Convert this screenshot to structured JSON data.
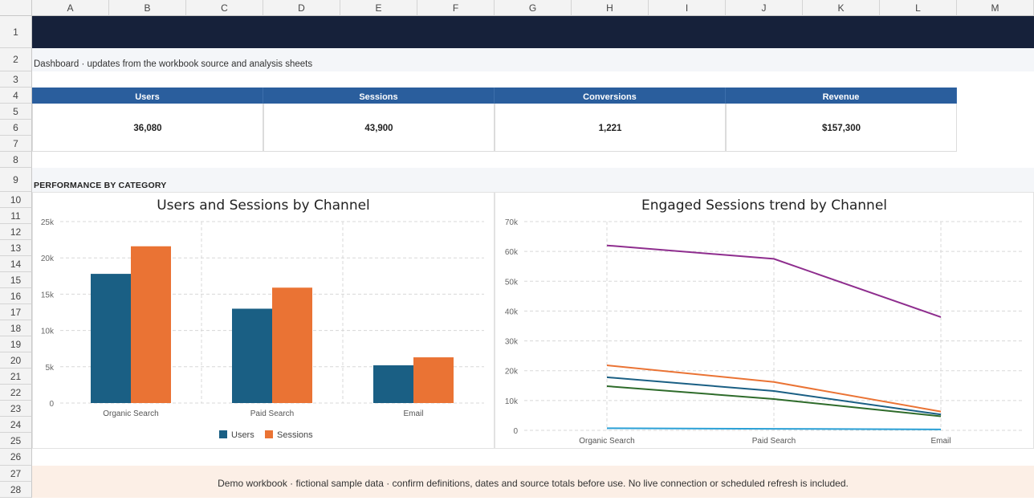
{
  "sheet": {
    "columns": [
      "A",
      "B",
      "C",
      "D",
      "E",
      "F",
      "G",
      "H",
      "I",
      "J",
      "K",
      "L",
      "M"
    ],
    "rows": [
      "1",
      "2",
      "3",
      "4",
      "5",
      "6",
      "7",
      "8",
      "9",
      "10",
      "11",
      "12",
      "13",
      "14",
      "15",
      "16",
      "17",
      "18",
      "19",
      "20",
      "21",
      "22",
      "23",
      "24",
      "25",
      "26",
      "27",
      "28"
    ]
  },
  "dashboard": {
    "subtitle": "Dashboard · updates from the workbook source and analysis sheets",
    "section_label": "PERFORMANCE BY CATEGORY",
    "footer": "Demo workbook · fictional sample data · confirm definitions, dates and source totals before use. No live connection or scheduled refresh is included."
  },
  "kpis": [
    {
      "label": "Users",
      "value": "36,080"
    },
    {
      "label": "Sessions",
      "value": "43,900"
    },
    {
      "label": "Conversions",
      "value": "1,221"
    },
    {
      "label": "Revenue",
      "value": "$157,300"
    }
  ],
  "colors": {
    "title_bar": "#16213a",
    "kpi_header": "#2a5e9d",
    "users": "#1a5f84",
    "sessions": "#ea7334"
  },
  "chart_data": [
    {
      "type": "bar",
      "title": "Users and Sessions by Channel",
      "categories": [
        "Organic Search",
        "Paid Search",
        "Email"
      ],
      "series": [
        {
          "name": "Users",
          "color": "#1a5f84",
          "values": [
            17800,
            13000,
            5200
          ]
        },
        {
          "name": "Sessions",
          "color": "#ea7334",
          "values": [
            21600,
            15900,
            6300
          ]
        }
      ],
      "ylim": [
        0,
        25000
      ],
      "yticks": [
        0,
        5000,
        10000,
        15000,
        20000,
        25000
      ],
      "ytick_labels": [
        "0",
        "5k",
        "10k",
        "15k",
        "20k",
        "25k"
      ],
      "grid": true,
      "legend": "bottom"
    },
    {
      "type": "line",
      "title": "Engaged Sessions trend by Channel",
      "categories": [
        "Organic Search",
        "Paid Search",
        "Email"
      ],
      "series": [
        {
          "color": "#8e2d8e",
          "values": [
            62000,
            57500,
            38000
          ]
        },
        {
          "color": "#ea7334",
          "values": [
            21800,
            16200,
            6300
          ]
        },
        {
          "color": "#1a5f84",
          "values": [
            17800,
            13200,
            5300
          ]
        },
        {
          "color": "#2e6b2a",
          "values": [
            14800,
            10500,
            4700
          ]
        },
        {
          "color": "#2aa0d6",
          "values": [
            700,
            500,
            300
          ]
        }
      ],
      "ylim": [
        0,
        70000
      ],
      "yticks": [
        0,
        10000,
        20000,
        30000,
        40000,
        50000,
        60000,
        70000
      ],
      "ytick_labels": [
        "0",
        "10k",
        "20k",
        "30k",
        "40k",
        "50k",
        "60k",
        "70k"
      ],
      "grid": true,
      "legend": "none"
    }
  ]
}
